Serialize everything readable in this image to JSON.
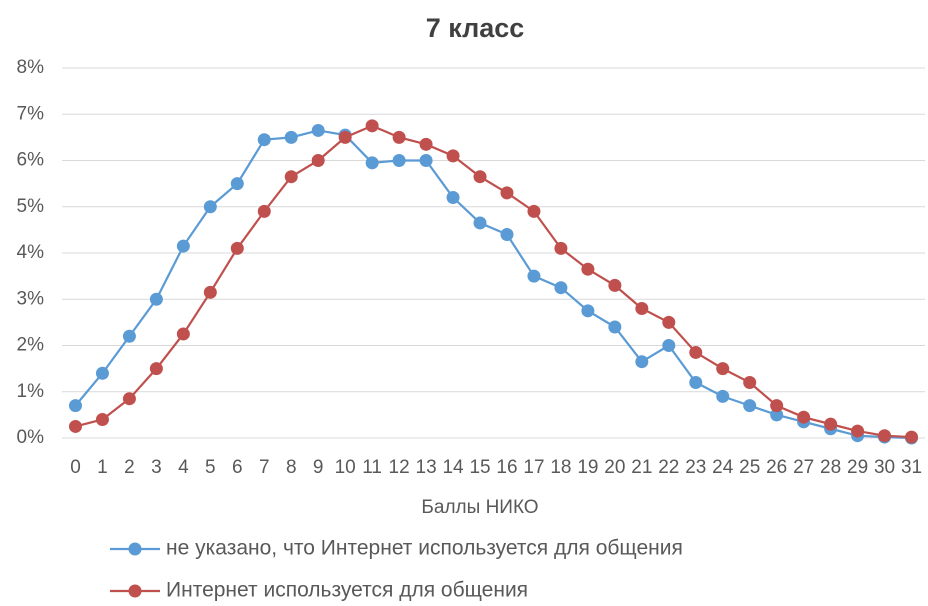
{
  "chart_data": {
    "type": "line",
    "title": "7 класс",
    "x_label": "Баллы НИКО",
    "categories": [
      "0",
      "1",
      "2",
      "3",
      "4",
      "5",
      "6",
      "7",
      "8",
      "9",
      "10",
      "11",
      "12",
      "13",
      "14",
      "15",
      "16",
      "17",
      "18",
      "19",
      "20",
      "21",
      "22",
      "23",
      "24",
      "25",
      "26",
      "27",
      "28",
      "29",
      "30",
      "31"
    ],
    "series": [
      {
        "name": "не указано, что Интернет используется для общения",
        "color": "#5b9bd5",
        "values": [
          0.7,
          1.4,
          2.2,
          3.0,
          4.15,
          5.0,
          5.5,
          6.45,
          6.5,
          6.65,
          6.55,
          5.95,
          6.0,
          6.0,
          5.2,
          4.65,
          4.4,
          3.5,
          3.25,
          2.75,
          2.4,
          1.65,
          2.0,
          1.2,
          0.9,
          0.7,
          0.5,
          0.35,
          0.2,
          0.05,
          0.02,
          0.0
        ]
      },
      {
        "name": "Интернет используется для общения",
        "color": "#c0504d",
        "values": [
          0.25,
          0.4,
          0.85,
          1.5,
          2.25,
          3.15,
          4.1,
          4.9,
          5.65,
          6.0,
          6.5,
          6.75,
          6.5,
          6.35,
          6.1,
          5.65,
          5.3,
          4.9,
          4.1,
          3.65,
          3.3,
          2.8,
          2.5,
          1.85,
          1.5,
          1.2,
          0.7,
          0.45,
          0.3,
          0.15,
          0.05,
          0.02
        ]
      }
    ],
    "ylim": [
      0,
      8
    ],
    "yticks": [
      {
        "value": 0,
        "label": "0%"
      },
      {
        "value": 1,
        "label": "1%"
      },
      {
        "value": 2,
        "label": "2%"
      },
      {
        "value": 3,
        "label": "3%"
      },
      {
        "value": 4,
        "label": "4%"
      },
      {
        "value": 5,
        "label": "5%"
      },
      {
        "value": 6,
        "label": "6%"
      },
      {
        "value": 7,
        "label": "7%"
      },
      {
        "value": 8,
        "label": "8%"
      }
    ],
    "grid": true,
    "legend": "bottom"
  }
}
